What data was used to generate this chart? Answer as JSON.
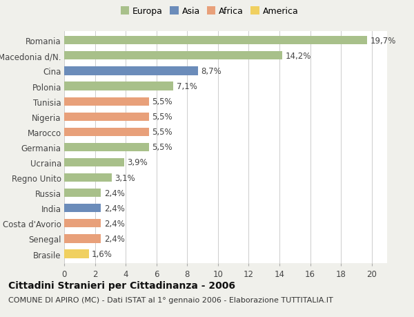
{
  "countries": [
    "Romania",
    "Macedonia d/N.",
    "Cina",
    "Polonia",
    "Tunisia",
    "Nigeria",
    "Marocco",
    "Germania",
    "Ucraina",
    "Regno Unito",
    "Russia",
    "India",
    "Costa d'Avorio",
    "Senegal",
    "Brasile"
  ],
  "values": [
    19.7,
    14.2,
    8.7,
    7.1,
    5.5,
    5.5,
    5.5,
    5.5,
    3.9,
    3.1,
    2.4,
    2.4,
    2.4,
    2.4,
    1.6
  ],
  "labels": [
    "19,7%",
    "14,2%",
    "8,7%",
    "7,1%",
    "5,5%",
    "5,5%",
    "5,5%",
    "5,5%",
    "3,9%",
    "3,1%",
    "2,4%",
    "2,4%",
    "2,4%",
    "2,4%",
    "1,6%"
  ],
  "continents": [
    "Europa",
    "Europa",
    "Asia",
    "Europa",
    "Africa",
    "Africa",
    "Africa",
    "Europa",
    "Europa",
    "Europa",
    "Europa",
    "Asia",
    "Africa",
    "Africa",
    "America"
  ],
  "continent_colors": {
    "Europa": "#a8c08a",
    "Asia": "#6b8cba",
    "Africa": "#e8a07a",
    "America": "#f0d060"
  },
  "legend_order": [
    "Europa",
    "Asia",
    "Africa",
    "America"
  ],
  "title_bold": "Cittadini Stranieri per Cittadinanza - 2006",
  "subtitle": "COMUNE DI APIRO (MC) - Dati ISTAT al 1° gennaio 2006 - Elaborazione TUTTITALIA.IT",
  "xlim": [
    0,
    21
  ],
  "xticks": [
    0,
    2,
    4,
    6,
    8,
    10,
    12,
    14,
    16,
    18,
    20
  ],
  "background_color": "#f0f0eb",
  "plot_background": "#ffffff",
  "bar_height": 0.55,
  "label_fontsize": 8.5,
  "tick_fontsize": 8.5,
  "title_fontsize": 10,
  "subtitle_fontsize": 8
}
